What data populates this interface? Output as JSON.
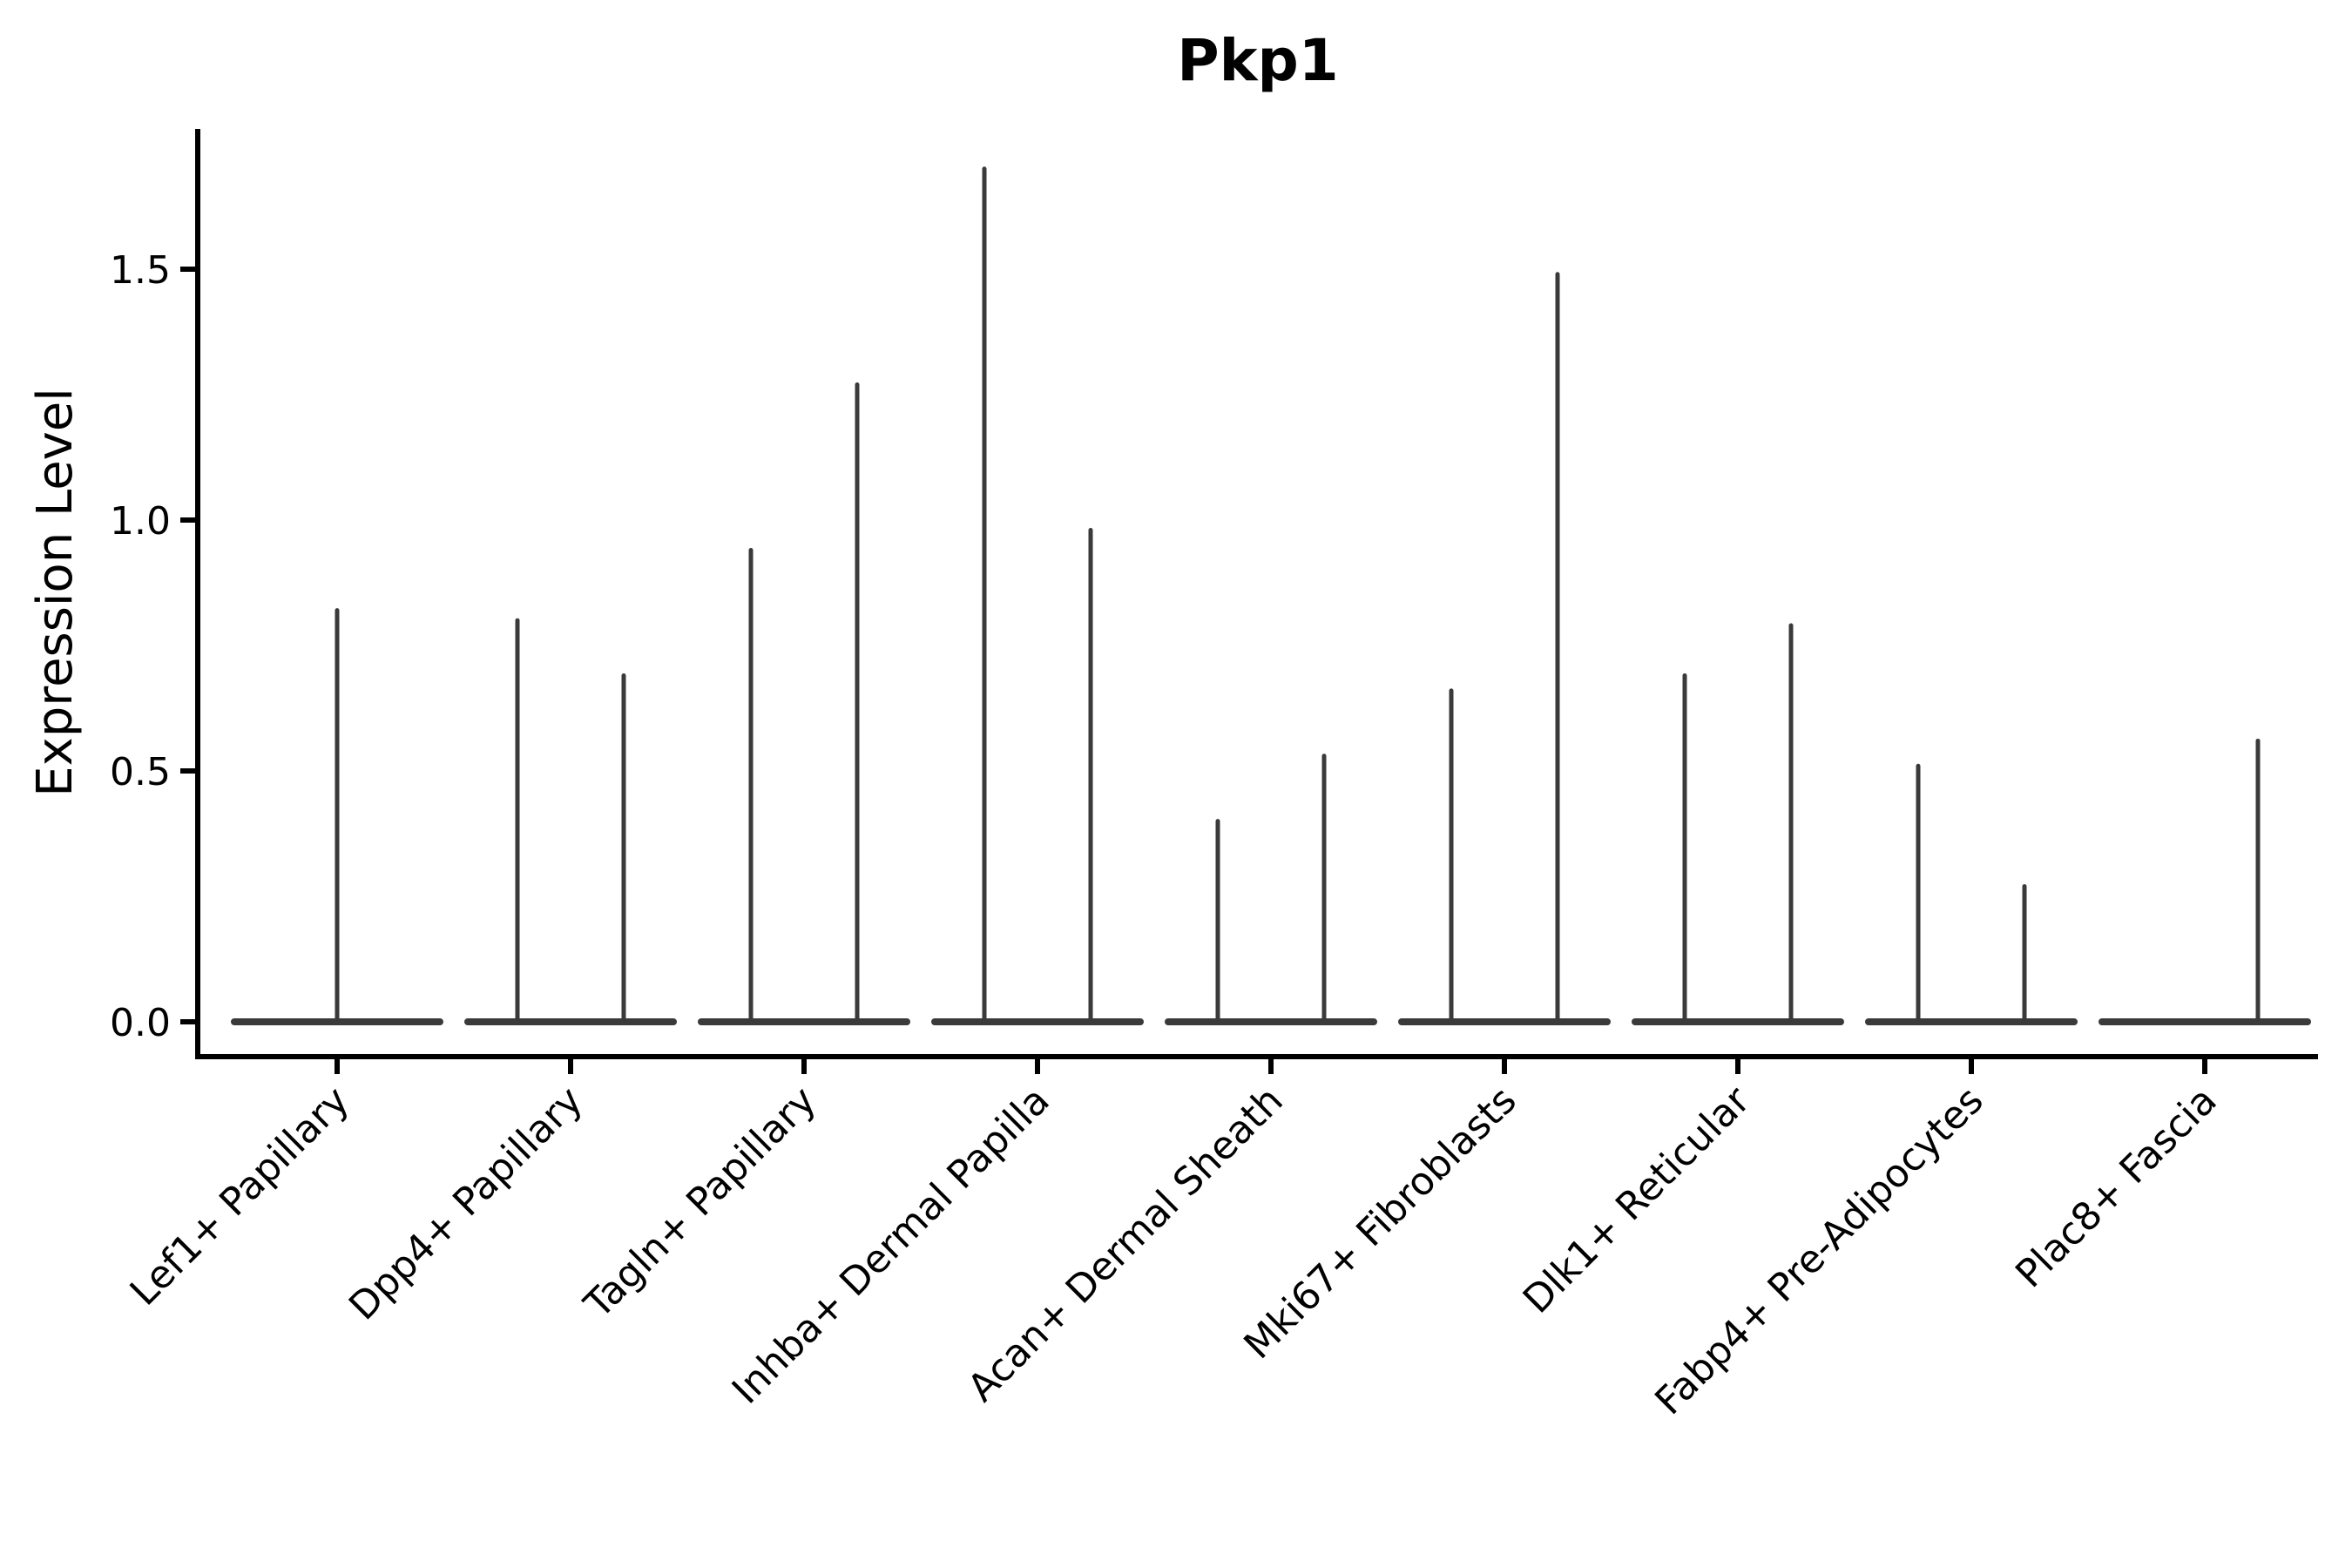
{
  "chart_data": {
    "type": "violin",
    "title": "Pkp1",
    "xlabel": "",
    "ylabel": "Expression Level",
    "yticks": [
      0.0,
      0.5,
      1.0,
      1.5
    ],
    "ylim": [
      -0.07,
      1.78
    ],
    "grid": false,
    "legend": "none",
    "categories": [
      "Lef1+ Papillary",
      "Dpp4+ Papillary",
      "Tagln+ Papillary",
      "Inhba+ Dermal Papilla",
      "Acan+ Dermal Sheath",
      "Mki67+ Fibroblasts",
      "Dlk1+ Reticular",
      "Fabp4+ Pre-Adipocytes",
      "Plac8+ Fascia"
    ],
    "violins": [
      {
        "category": "Lef1+ Papillary",
        "spikes": [
          {
            "offset": 0,
            "max": 0.82
          }
        ]
      },
      {
        "category": "Dpp4+ Papillary",
        "spikes": [
          {
            "offset": -61,
            "max": 0.8
          },
          {
            "offset": 61,
            "max": 0.69
          }
        ]
      },
      {
        "category": "Tagln+ Papillary",
        "spikes": [
          {
            "offset": -61,
            "max": 0.94
          },
          {
            "offset": 61,
            "max": 1.27
          }
        ]
      },
      {
        "category": "Inhba+ Dermal Papilla",
        "spikes": [
          {
            "offset": -61,
            "max": 1.7
          },
          {
            "offset": 61,
            "max": 0.98
          }
        ]
      },
      {
        "category": "Acan+ Dermal Sheath",
        "spikes": [
          {
            "offset": -61,
            "max": 0.4
          },
          {
            "offset": 61,
            "max": 0.53
          }
        ]
      },
      {
        "category": "Mki67+ Fibroblasts",
        "spikes": [
          {
            "offset": -61,
            "max": 0.66
          },
          {
            "offset": 61,
            "max": 1.49
          }
        ]
      },
      {
        "category": "Dlk1+ Reticular",
        "spikes": [
          {
            "offset": -61,
            "max": 0.69
          },
          {
            "offset": 61,
            "max": 0.79
          }
        ]
      },
      {
        "category": "Fabp4+ Pre-Adipocytes",
        "spikes": [
          {
            "offset": -61,
            "max": 0.51
          },
          {
            "offset": 61,
            "max": 0.27
          }
        ]
      },
      {
        "category": "Plac8+ Fascia",
        "spikes": [
          {
            "offset": 61,
            "max": 0.56
          }
        ]
      }
    ],
    "violin_color": "#3a3a3a",
    "axis_color": "#000000",
    "text_color": "#000000",
    "background_color": "#ffffff"
  }
}
